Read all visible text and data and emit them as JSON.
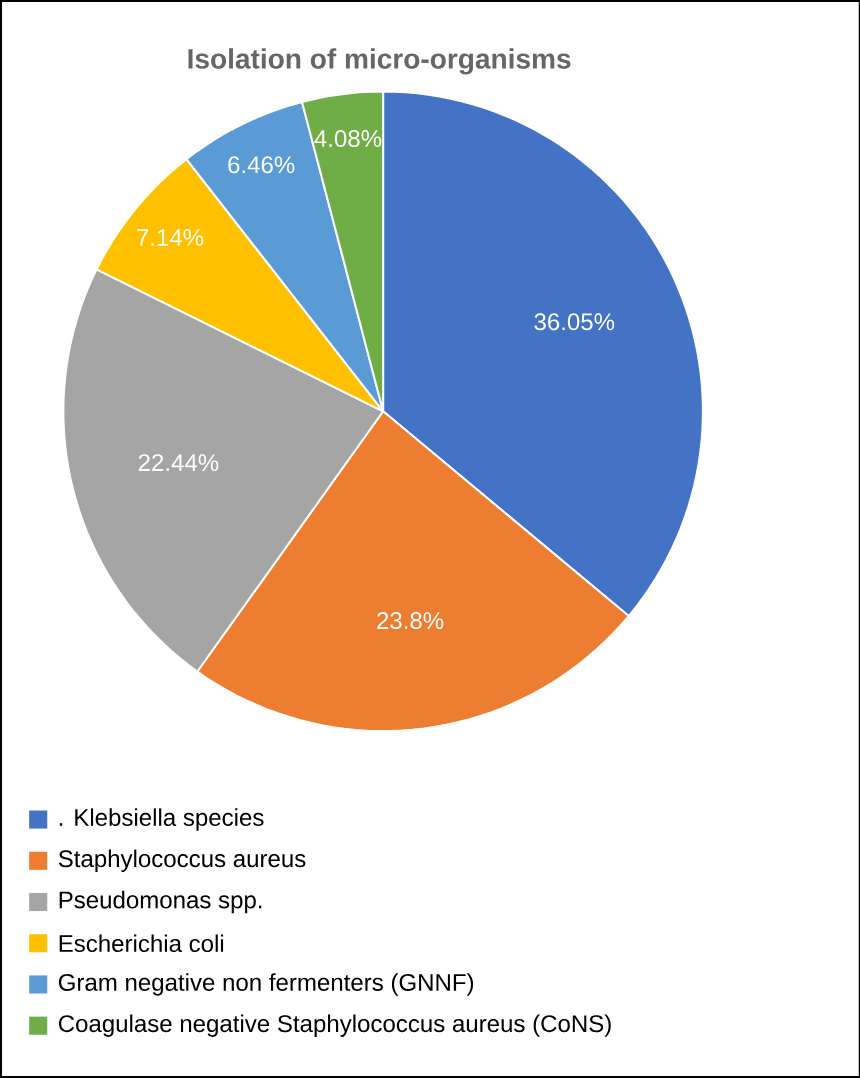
{
  "chart_data": {
    "type": "pie",
    "title": "Isolation of micro-organisms",
    "categories": [
      ". Klebsiella species",
      "Staphylococcus aureus",
      "Pseudomonas spp.",
      "Escherichia coli",
      "Gram negative non fermenters (GNNF)",
      "Coagulase negative Staphylococcus aureus (CoNS)"
    ],
    "values": [
      36.05,
      23.8,
      22.44,
      7.14,
      6.46,
      4.08
    ],
    "value_labels": [
      "36.05%",
      "23.8%",
      "22.44%",
      "7.14%",
      "6.46%",
      "4.08%"
    ],
    "colors": [
      "#4472c4",
      "#ed7d31",
      "#a5a5a5",
      "#ffc000",
      "#5b9bd5",
      "#70ad47"
    ],
    "legend": "bottom"
  }
}
